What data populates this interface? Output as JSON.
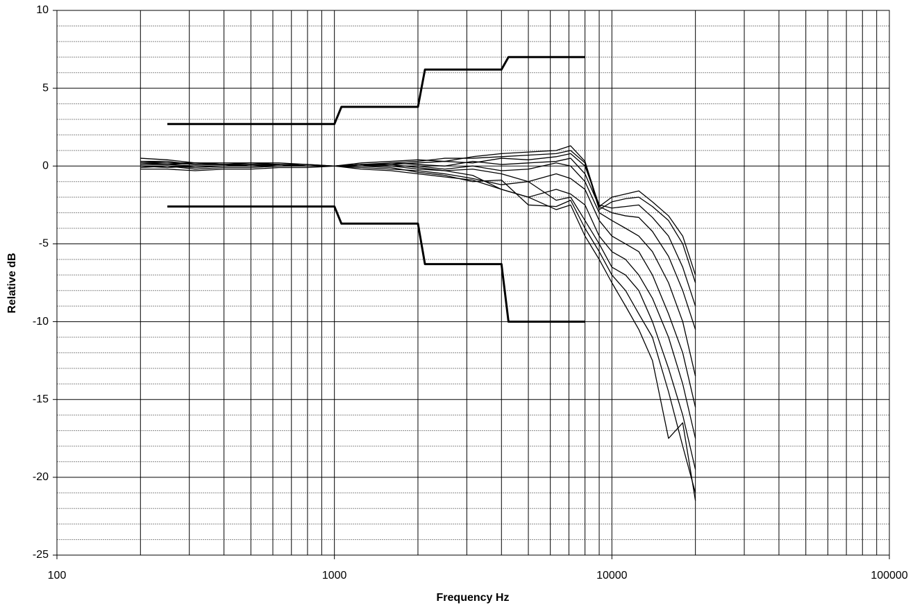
{
  "chart_data": {
    "type": "line",
    "xlabel": "Frequency Hz",
    "ylabel": "Relative dB",
    "xscale": "log",
    "grid": true,
    "color": "#000000",
    "xlim": [
      100,
      100000
    ],
    "xticks": [
      100,
      1000,
      10000,
      100000
    ],
    "ylim": [
      -25,
      10
    ],
    "yticks": [
      -25,
      -20,
      -15,
      -10,
      -5,
      0,
      5,
      10
    ],
    "x": [
      200,
      250,
      315,
      400,
      500,
      630,
      800,
      1000,
      1250,
      1600,
      2000,
      2500,
      3150,
      4000,
      5000,
      6300,
      7100,
      8000,
      9000,
      10000,
      11200,
      12500,
      14000,
      16000,
      18000,
      20000
    ],
    "series": [
      {
        "values": [
          0.5,
          0.4,
          0.2,
          0.2,
          0.2,
          0.1,
          0.1,
          0,
          0.2,
          0.3,
          0.4,
          0.3,
          0.6,
          0.8,
          0.9,
          1.0,
          1.3,
          0.3,
          -2.6,
          -2.0,
          -1.8,
          -1.6,
          -2.3,
          -3.2,
          -4.5,
          -7.0
        ]
      },
      {
        "values": [
          0.3,
          0.3,
          0.1,
          0.1,
          0.2,
          0.2,
          0.1,
          0,
          0.1,
          0.2,
          0.3,
          0.5,
          0.5,
          0.6,
          0.7,
          0.8,
          1.0,
          0.2,
          -2.8,
          -2.3,
          -2.1,
          -2.0,
          -2.6,
          -3.5,
          -5.0,
          -7.5
        ]
      },
      {
        "values": [
          0.2,
          0.1,
          0.2,
          0.1,
          0.1,
          0.1,
          0.0,
          0,
          0.1,
          0.1,
          0.2,
          0.3,
          0.2,
          0.5,
          0.4,
          0.6,
          0.8,
          0.0,
          -2.5,
          -2.7,
          -2.6,
          -2.5,
          -3.3,
          -4.5,
          -6.5,
          -9.0
        ]
      },
      {
        "values": [
          0.1,
          0.1,
          0.0,
          0.0,
          0.1,
          0.1,
          0.0,
          0,
          0.0,
          0.2,
          0.1,
          0.0,
          0.3,
          0.1,
          0.2,
          0.3,
          0.5,
          -0.5,
          -2.6,
          -3.0,
          -3.2,
          -3.3,
          -4.2,
          -5.8,
          -8.0,
          -10.5
        ]
      },
      {
        "values": [
          0.0,
          0.0,
          -0.1,
          0.0,
          0.0,
          0.0,
          0.0,
          0,
          0.1,
          0.0,
          0.0,
          -0.2,
          0.0,
          -0.3,
          -0.2,
          0.2,
          0.0,
          -1.0,
          -3.0,
          -3.5,
          -4.0,
          -4.5,
          -5.5,
          -7.5,
          -10.0,
          -13.5
        ]
      },
      {
        "values": [
          -0.1,
          0.0,
          -0.2,
          -0.1,
          -0.1,
          0.0,
          0.0,
          0,
          -0.1,
          -0.2,
          -0.3,
          -0.5,
          -0.8,
          -1.2,
          -1.0,
          -0.5,
          -0.8,
          -1.5,
          -3.5,
          -4.5,
          -5.0,
          -5.5,
          -7.0,
          -9.5,
          -12.0,
          -15.5
        ]
      },
      {
        "values": [
          -0.2,
          -0.2,
          -0.3,
          -0.2,
          -0.2,
          -0.1,
          -0.1,
          0,
          -0.2,
          -0.3,
          -0.5,
          -0.7,
          -0.9,
          -1.5,
          -2.0,
          -1.5,
          -1.8,
          -2.5,
          -4.5,
          -5.5,
          -6.0,
          -7.0,
          -8.5,
          -11.0,
          -14.0,
          -17.5
        ]
      },
      {
        "values": [
          0.2,
          0.2,
          0.2,
          0.1,
          0.0,
          0.1,
          0.0,
          0,
          0.0,
          0.1,
          -0.1,
          -0.3,
          -0.2,
          -0.5,
          -1.0,
          -2.2,
          -2.0,
          -3.5,
          -5.0,
          -6.5,
          -7.0,
          -8.0,
          -10.0,
          -13.0,
          -16.0,
          -19.5
        ]
      },
      {
        "values": [
          0.0,
          -0.1,
          0.0,
          0.0,
          0.1,
          0.0,
          0.0,
          0,
          0.0,
          -0.1,
          -0.4,
          -0.6,
          -1.0,
          -0.9,
          -2.5,
          -2.6,
          -2.2,
          -4.0,
          -5.5,
          -7.0,
          -8.0,
          -9.5,
          -11.0,
          -14.5,
          -18.0,
          -21.0
        ]
      },
      {
        "values": [
          0.3,
          0.2,
          0.1,
          0.1,
          0.1,
          0.1,
          0.0,
          0,
          0.1,
          0.0,
          -0.2,
          -0.3,
          -0.6,
          -1.5,
          -2.0,
          -2.8,
          -2.5,
          -4.5,
          -6.0,
          -7.5,
          -9.0,
          -10.5,
          -12.5,
          -17.5,
          -16.5,
          -21.5
        ]
      },
      {
        "x": [
          250,
          1000,
          1060,
          2000,
          2120,
          4000,
          4240,
          8000
        ],
        "values": [
          2.7,
          2.7,
          3.8,
          3.8,
          6.2,
          6.2,
          7.0,
          7.0
        ],
        "width": 3
      },
      {
        "x": [
          250,
          1000,
          1060,
          2000,
          2120,
          4000,
          4240,
          8000
        ],
        "values": [
          -2.6,
          -2.6,
          -3.7,
          -3.7,
          -6.3,
          -6.3,
          -10,
          -10
        ],
        "width": 3
      }
    ]
  }
}
